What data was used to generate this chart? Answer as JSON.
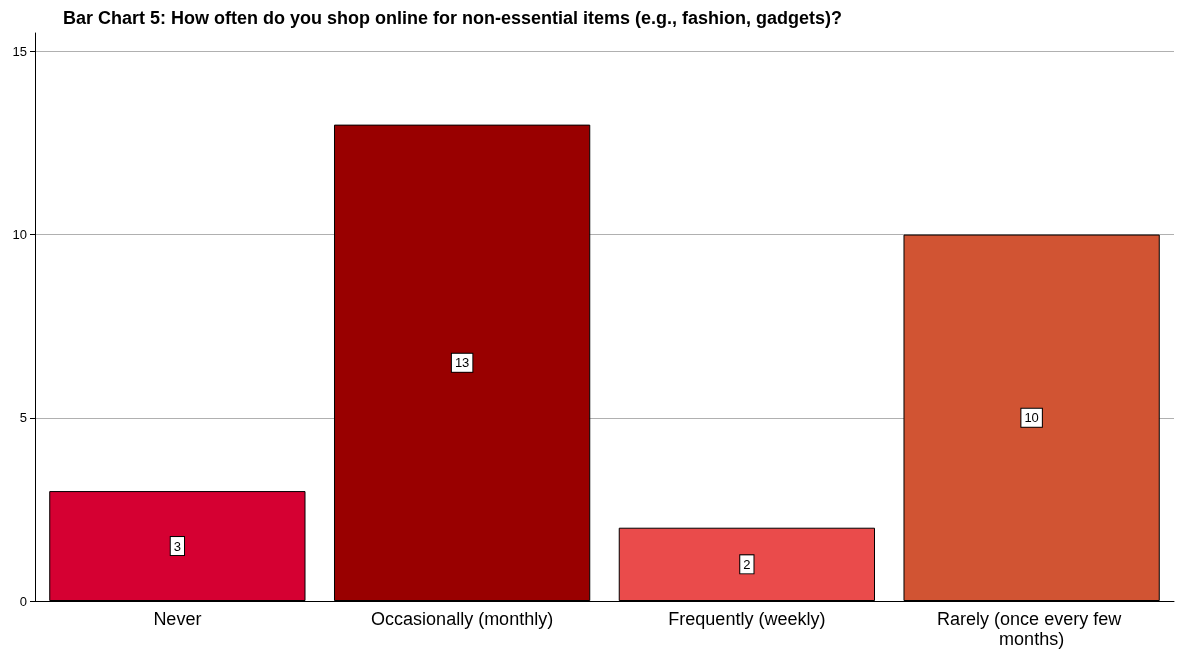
{
  "chart_data": {
    "type": "bar",
    "title": "Bar Chart 5: How often do you shop online for non-essential items (e.g., fashion, gadgets)?",
    "categories": [
      "Never",
      "Occasionally (monthly)",
      "Frequently (weekly)",
      "Rarely (once every few months)"
    ],
    "values": [
      3,
      13,
      2,
      10
    ],
    "colors": [
      "#d50032",
      "#990000",
      "#ea4b4b",
      "#d15433"
    ],
    "ylim": [
      0,
      15.5
    ],
    "yticks": [
      0,
      5,
      10,
      15
    ],
    "grid": "y",
    "data_labels": true
  }
}
